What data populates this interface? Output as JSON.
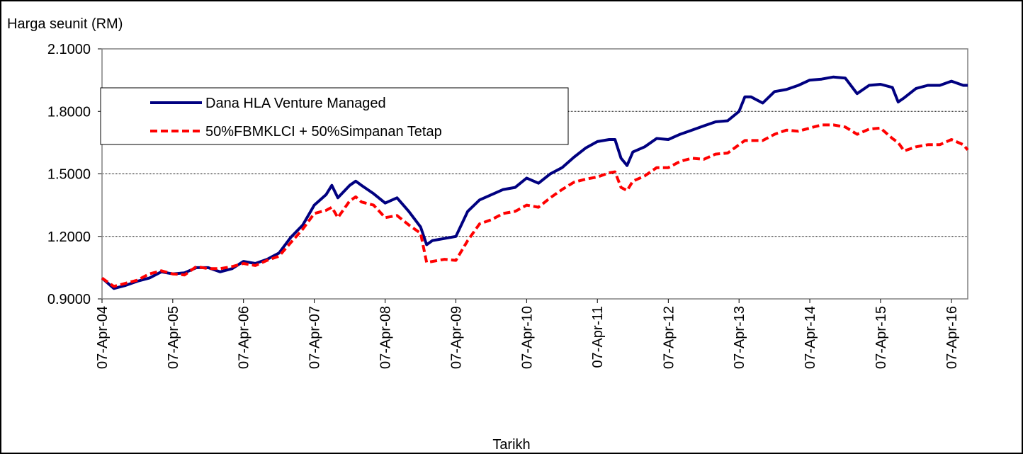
{
  "chart_data": {
    "type": "line",
    "y_label": "Harga seunit (RM)",
    "x_label": "Tarikh",
    "x": [
      "07-Apr-04",
      "07-Jun-04",
      "07-Aug-04",
      "07-Oct-04",
      "07-Dec-04",
      "07-Feb-05",
      "07-Apr-05",
      "07-Jun-05",
      "07-Aug-05",
      "07-Oct-05",
      "07-Dec-05",
      "07-Feb-06",
      "07-Apr-06",
      "07-Jun-06",
      "07-Aug-06",
      "07-Oct-06",
      "07-Dec-06",
      "07-Feb-07",
      "07-Apr-07",
      "07-Jun-07",
      "07-Jul-07",
      "07-Aug-07",
      "07-Oct-07",
      "07-Nov-07",
      "07-Dec-07",
      "07-Feb-08",
      "07-Apr-08",
      "07-Jun-08",
      "07-Aug-08",
      "07-Oct-08",
      "07-Nov-08",
      "07-Dec-08",
      "07-Feb-09",
      "07-Apr-09",
      "07-Jun-09",
      "07-Aug-09",
      "07-Oct-09",
      "07-Dec-09",
      "07-Feb-10",
      "07-Apr-10",
      "07-Jun-10",
      "07-Aug-10",
      "07-Oct-10",
      "07-Dec-10",
      "07-Feb-11",
      "07-Apr-11",
      "07-Jun-11",
      "07-Jul-11",
      "07-Aug-11",
      "07-Sep-11",
      "07-Oct-11",
      "07-Dec-11",
      "07-Feb-12",
      "07-Apr-12",
      "07-Jun-12",
      "07-Aug-12",
      "07-Oct-12",
      "07-Dec-12",
      "07-Feb-13",
      "07-Apr-13",
      "07-May-13",
      "07-Jun-13",
      "07-Aug-13",
      "07-Oct-13",
      "07-Dec-13",
      "07-Feb-14",
      "07-Apr-14",
      "07-Jun-14",
      "07-Aug-14",
      "07-Oct-14",
      "07-Dec-14",
      "07-Feb-15",
      "07-Apr-15",
      "07-Jun-15",
      "07-Jul-15",
      "07-Aug-15",
      "07-Oct-15",
      "07-Dec-15",
      "07-Feb-16",
      "07-Apr-16",
      "07-Jun-16",
      "30-Jun-16"
    ],
    "series": [
      {
        "name": "Dana HLA Venture Managed",
        "color": "#000080",
        "dashed": false,
        "values": [
          1.0,
          0.95,
          0.965,
          0.985,
          1.0,
          1.03,
          1.02,
          1.025,
          1.05,
          1.05,
          1.03,
          1.045,
          1.08,
          1.07,
          1.09,
          1.12,
          1.195,
          1.255,
          1.35,
          1.4,
          1.445,
          1.385,
          1.445,
          1.465,
          1.445,
          1.405,
          1.36,
          1.385,
          1.32,
          1.245,
          1.16,
          1.18,
          1.19,
          1.2,
          1.32,
          1.375,
          1.4,
          1.425,
          1.435,
          1.48,
          1.455,
          1.5,
          1.53,
          1.58,
          1.625,
          1.655,
          1.665,
          1.665,
          1.575,
          1.54,
          1.605,
          1.63,
          1.67,
          1.665,
          1.69,
          1.71,
          1.73,
          1.75,
          1.755,
          1.8,
          1.87,
          1.87,
          1.84,
          1.895,
          1.905,
          1.925,
          1.95,
          1.955,
          1.965,
          1.96,
          1.885,
          1.925,
          1.93,
          1.915,
          1.845,
          1.865,
          1.91,
          1.925,
          1.925,
          1.945,
          1.925,
          1.925
        ]
      },
      {
        "name": "50%FBMKLCI + 50%Simpanan Tetap",
        "color": "#ff0000",
        "dashed": true,
        "values": [
          1.0,
          0.96,
          0.975,
          0.99,
          1.02,
          1.035,
          1.02,
          1.015,
          1.055,
          1.045,
          1.045,
          1.055,
          1.07,
          1.06,
          1.085,
          1.105,
          1.17,
          1.235,
          1.31,
          1.325,
          1.34,
          1.29,
          1.37,
          1.39,
          1.365,
          1.35,
          1.29,
          1.3,
          1.255,
          1.215,
          1.075,
          1.08,
          1.09,
          1.085,
          1.18,
          1.26,
          1.28,
          1.31,
          1.32,
          1.35,
          1.34,
          1.385,
          1.425,
          1.46,
          1.475,
          1.485,
          1.505,
          1.51,
          1.435,
          1.42,
          1.465,
          1.49,
          1.53,
          1.53,
          1.56,
          1.575,
          1.57,
          1.595,
          1.6,
          1.64,
          1.66,
          1.66,
          1.66,
          1.69,
          1.71,
          1.705,
          1.72,
          1.735,
          1.735,
          1.725,
          1.69,
          1.715,
          1.72,
          1.67,
          1.65,
          1.61,
          1.63,
          1.64,
          1.64,
          1.665,
          1.64,
          1.615
        ]
      }
    ],
    "xlim": [
      "07-Apr-04",
      "30-Jun-16"
    ],
    "xticks": [
      "07-Apr-04",
      "07-Apr-05",
      "07-Apr-06",
      "07-Apr-07",
      "07-Apr-08",
      "07-Apr-09",
      "07-Apr-10",
      "07-Apr-11",
      "07-Apr-12",
      "07-Apr-13",
      "07-Apr-14",
      "07-Apr-15",
      "07-Apr-16"
    ],
    "ylim": [
      0.9,
      2.1
    ],
    "yticks": [
      {
        "value": 0.9,
        "label": "0.9000"
      },
      {
        "value": 1.2,
        "label": "1.2000"
      },
      {
        "value": 1.5,
        "label": "1.5000"
      },
      {
        "value": 1.8,
        "label": "1.8000"
      },
      {
        "value": 2.1,
        "label": "2.1000"
      }
    ],
    "grid": true,
    "legend": "upper left"
  }
}
